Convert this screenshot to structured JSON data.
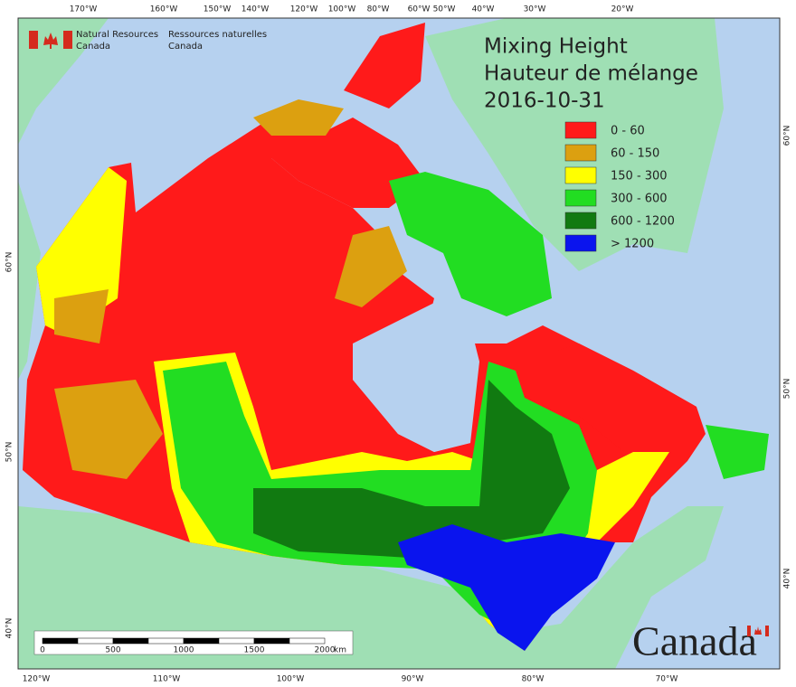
{
  "header": {
    "agency_en": [
      "Natural Resources",
      "Canada"
    ],
    "agency_fr": [
      "Ressources naturelles",
      "Canada"
    ]
  },
  "title": [
    "Mixing Height",
    "Hauteur de mélange",
    "2016-10-31"
  ],
  "legend": [
    {
      "label": "0 - 60",
      "color": "#ff1a1a"
    },
    {
      "label": "60 - 150",
      "color": "#dca010"
    },
    {
      "label": "150 - 300",
      "color": "#ffff00"
    },
    {
      "label": "300 - 600",
      "color": "#22dd22"
    },
    {
      "label": "600 - 1200",
      "color": "#117a11"
    },
    {
      "label": "> 1200",
      "color": "#0a14ee"
    }
  ],
  "top_longitudes": [
    "170°W",
    "160°W",
    "150°W",
    "140°W",
    "120°W",
    "100°W",
    "80°W",
    "60°W",
    "50°W",
    "40°W",
    "30°W",
    "20°W"
  ],
  "bottom_longitudes": [
    "120°W",
    "110°W",
    "100°W",
    "90°W",
    "80°W",
    "70°W"
  ],
  "left_latitudes": [
    "60°N",
    "50°N",
    "40°N"
  ],
  "right_latitudes": [
    "60°N",
    "50°N",
    "40°N"
  ],
  "scale_bar": {
    "labels": [
      "0",
      "500",
      "1000",
      "1500",
      "2000"
    ],
    "unit": "km"
  },
  "wordmark": "Canada"
}
